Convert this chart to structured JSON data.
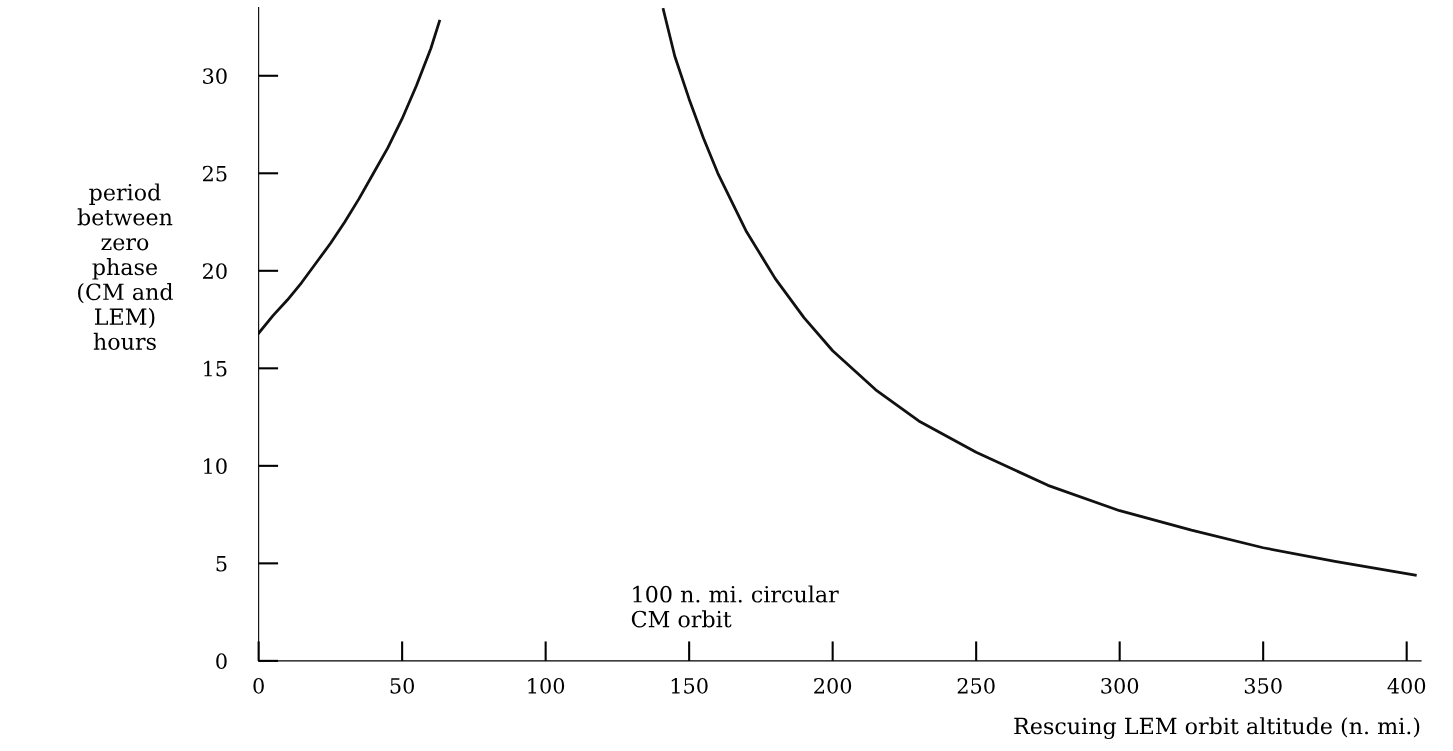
{
  "chart_data": {
    "type": "line",
    "xlabel": "Rescuing LEM orbit altitude (n. mi.)",
    "ylabel": "period\nbetween\nzero\nphase\n(CM and\nLEM)\nhours",
    "annotations": [
      "100 n. mi. circular\nCM orbit"
    ],
    "series": [
      {
        "color": "#111111",
        "x": [
          0,
          5,
          10,
          15,
          20,
          25,
          30,
          35,
          40,
          45,
          50,
          55,
          60,
          63
        ],
        "values": [
          16.8,
          17.7,
          18.5,
          19.4,
          20.4,
          21.4,
          22.5,
          23.7,
          25.0,
          26.3,
          27.8,
          29.5,
          31.4,
          32.8
        ]
      },
      {
        "color": "#111111",
        "x": [
          141,
          145,
          150,
          155,
          160,
          170,
          180,
          190,
          200,
          215,
          230,
          250,
          275,
          300,
          325,
          350,
          375,
          403
        ],
        "values": [
          33.4,
          31.0,
          28.8,
          26.8,
          25.0,
          22.0,
          19.6,
          17.6,
          15.9,
          13.9,
          12.3,
          10.7,
          9.0,
          7.7,
          6.7,
          5.8,
          5.1,
          4.4
        ]
      }
    ],
    "xlim": [
      0,
      405
    ],
    "ylim": [
      0,
      33.5
    ],
    "xticks": [
      0,
      50,
      100,
      150,
      200,
      250,
      300,
      350,
      400
    ],
    "yticks": [
      0,
      5,
      10,
      15,
      20,
      25,
      30
    ],
    "grid": false,
    "legend": false,
    "marker": "none",
    "line_style": "solid"
  }
}
